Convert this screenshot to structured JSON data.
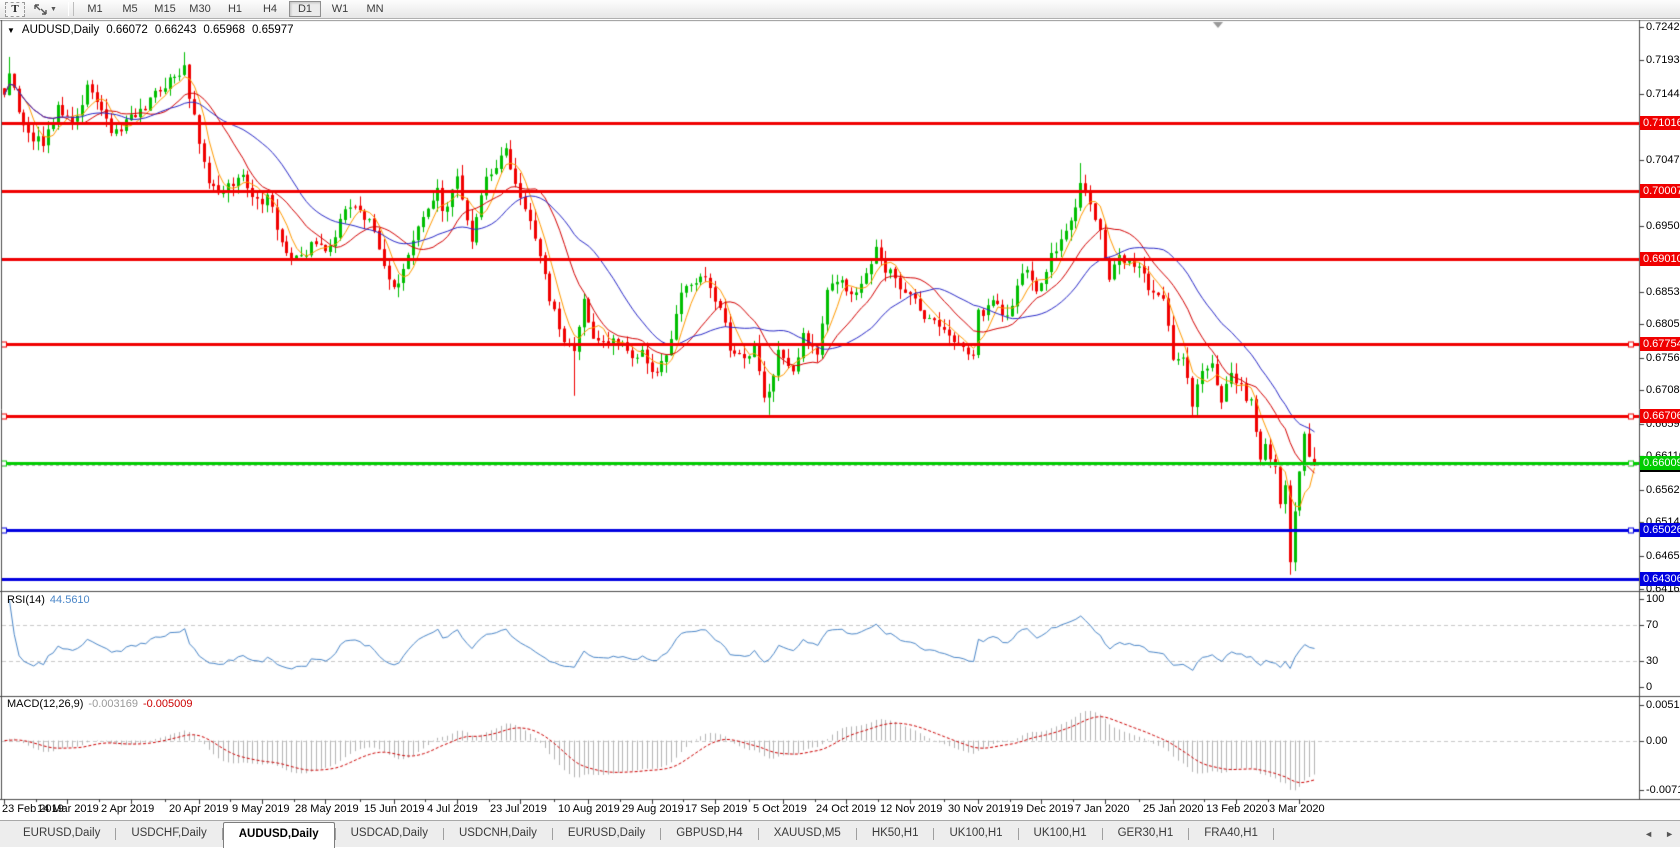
{
  "toolbar": {
    "text_tool_label": "T",
    "timeframes": [
      "M1",
      "M5",
      "M15",
      "M30",
      "H1",
      "H4",
      "D1",
      "W1",
      "MN"
    ],
    "active_timeframe": "D1"
  },
  "chart": {
    "collapse_icon": "▼",
    "title_symbol": "AUDUSD,Daily",
    "ohlc": {
      "open": "0.66072",
      "high": "0.66243",
      "low": "0.65968",
      "close": "0.65977"
    }
  },
  "chart_data": {
    "type": "candlestick",
    "symbol": "AUDUSD",
    "timeframe": "Daily",
    "date_range": [
      "2019-02-25",
      "2020-03-06"
    ],
    "colors": {
      "up": "#00be00",
      "down": "#f00000",
      "background": "#ffffff",
      "border": "#4a4a4a"
    },
    "last_bar": {
      "open": 0.66072,
      "high": 0.66243,
      "low": 0.65968,
      "close": 0.65977
    },
    "price_anchors": [
      [
        "2019-02-25",
        0.714
      ],
      [
        "2019-02-26",
        0.7175
      ],
      [
        "2019-03-01",
        0.7095
      ],
      [
        "2019-03-05",
        0.708
      ],
      [
        "2019-03-07",
        0.7068
      ],
      [
        "2019-03-12",
        0.712
      ],
      [
        "2019-03-15",
        0.7103
      ],
      [
        "2019-03-20",
        0.715
      ],
      [
        "2019-03-22",
        0.7133
      ],
      [
        "2019-03-27",
        0.7085
      ],
      [
        "2019-03-29",
        0.7096
      ],
      [
        "2019-04-03",
        0.7115
      ],
      [
        "2019-04-08",
        0.7132
      ],
      [
        "2019-04-12",
        0.7168
      ],
      [
        "2019-04-17",
        0.7182
      ],
      [
        "2019-04-18",
        0.7135
      ],
      [
        "2019-04-24",
        0.7018
      ],
      [
        "2019-04-26",
        0.6995
      ],
      [
        "2019-05-01",
        0.7015
      ],
      [
        "2019-05-03",
        0.7022
      ],
      [
        "2019-05-08",
        0.6985
      ],
      [
        "2019-05-10",
        0.6992
      ],
      [
        "2019-05-15",
        0.6928
      ],
      [
        "2019-05-17",
        0.6898
      ],
      [
        "2019-05-21",
        0.6905
      ],
      [
        "2019-05-24",
        0.6925
      ],
      [
        "2019-05-29",
        0.6915
      ],
      [
        "2019-06-03",
        0.6975
      ],
      [
        "2019-06-06",
        0.6968
      ],
      [
        "2019-06-10",
        0.6958
      ],
      [
        "2019-06-14",
        0.6872
      ],
      [
        "2019-06-18",
        0.6862
      ],
      [
        "2019-06-21",
        0.693
      ],
      [
        "2019-06-25",
        0.696
      ],
      [
        "2019-06-28",
        0.7
      ],
      [
        "2019-07-01",
        0.6965
      ],
      [
        "2019-07-04",
        0.7025
      ],
      [
        "2019-07-09",
        0.6932
      ],
      [
        "2019-07-12",
        0.7018
      ],
      [
        "2019-07-18",
        0.706
      ],
      [
        "2019-07-19",
        0.704
      ],
      [
        "2019-07-24",
        0.6975
      ],
      [
        "2019-07-29",
        0.69
      ],
      [
        "2019-07-31",
        0.6845
      ],
      [
        "2019-08-02",
        0.68
      ],
      [
        "2019-08-07",
        0.6758
      ],
      [
        "2019-08-09",
        0.6838
      ],
      [
        "2019-08-13",
        0.6782
      ],
      [
        "2019-08-16",
        0.6778
      ],
      [
        "2019-08-21",
        0.6782
      ],
      [
        "2019-08-23",
        0.6758
      ],
      [
        "2019-08-27",
        0.6762
      ],
      [
        "2019-08-30",
        0.6732
      ],
      [
        "2019-09-03",
        0.676
      ],
      [
        "2019-09-06",
        0.6845
      ],
      [
        "2019-09-11",
        0.6872
      ],
      [
        "2019-09-13",
        0.6878
      ],
      [
        "2019-09-18",
        0.683
      ],
      [
        "2019-09-20",
        0.6772
      ],
      [
        "2019-09-25",
        0.6752
      ],
      [
        "2019-09-27",
        0.6768
      ],
      [
        "2019-10-01",
        0.6702
      ],
      [
        "2019-10-02",
        0.6708
      ],
      [
        "2019-10-04",
        0.6768
      ],
      [
        "2019-10-09",
        0.6728
      ],
      [
        "2019-10-11",
        0.679
      ],
      [
        "2019-10-16",
        0.6762
      ],
      [
        "2019-10-18",
        0.6858
      ],
      [
        "2019-10-22",
        0.6872
      ],
      [
        "2019-10-25",
        0.6842
      ],
      [
        "2019-10-29",
        0.6858
      ],
      [
        "2019-10-31",
        0.689
      ],
      [
        "2019-11-01",
        0.6912
      ],
      [
        "2019-11-05",
        0.6888
      ],
      [
        "2019-11-08",
        0.6862
      ],
      [
        "2019-11-13",
        0.684
      ],
      [
        "2019-11-15",
        0.6815
      ],
      [
        "2019-11-20",
        0.68
      ],
      [
        "2019-11-22",
        0.6785
      ],
      [
        "2019-11-26",
        0.6775
      ],
      [
        "2019-11-29",
        0.6765
      ],
      [
        "2019-12-02",
        0.682
      ],
      [
        "2019-12-06",
        0.684
      ],
      [
        "2019-12-10",
        0.6812
      ],
      [
        "2019-12-12",
        0.6865
      ],
      [
        "2019-12-16",
        0.6885
      ],
      [
        "2019-12-18",
        0.6852
      ],
      [
        "2019-12-23",
        0.6905
      ],
      [
        "2019-12-27",
        0.695
      ],
      [
        "2019-12-31",
        0.7018
      ],
      [
        "2020-01-02",
        0.6985
      ],
      [
        "2020-01-06",
        0.6942
      ],
      [
        "2020-01-08",
        0.6872
      ],
      [
        "2020-01-10",
        0.69
      ],
      [
        "2020-01-14",
        0.6898
      ],
      [
        "2020-01-16",
        0.6888
      ],
      [
        "2020-01-21",
        0.6845
      ],
      [
        "2020-01-23",
        0.684
      ],
      [
        "2020-01-27",
        0.676
      ],
      [
        "2020-01-29",
        0.6755
      ],
      [
        "2020-01-31",
        0.6692
      ],
      [
        "2020-02-04",
        0.6735
      ],
      [
        "2020-02-06",
        0.6745
      ],
      [
        "2020-02-10",
        0.6695
      ],
      [
        "2020-02-12",
        0.6735
      ],
      [
        "2020-02-14",
        0.6712
      ],
      [
        "2020-02-18",
        0.6688
      ],
      [
        "2020-02-20",
        0.6612
      ],
      [
        "2020-02-21",
        0.6628
      ],
      [
        "2020-02-25",
        0.66
      ],
      [
        "2020-02-26",
        0.6548
      ],
      [
        "2020-02-27",
        0.657
      ],
      [
        "2020-02-28",
        0.646
      ],
      [
        "2020-03-02",
        0.653
      ],
      [
        "2020-03-03",
        0.6595
      ],
      [
        "2020-03-04",
        0.664
      ],
      [
        "2020-03-05",
        0.6612
      ],
      [
        "2020-03-06",
        0.6598
      ]
    ],
    "wick_overrides": [
      {
        "date": "2019-02-26",
        "high": 0.7198
      },
      {
        "date": "2019-04-17",
        "high": 0.7205
      },
      {
        "date": "2019-08-07",
        "low": 0.67
      },
      {
        "date": "2019-10-02",
        "low": 0.6672
      },
      {
        "date": "2019-12-31",
        "high": 0.7042
      },
      {
        "date": "2020-02-28",
        "low": 0.6437
      }
    ],
    "moving_averages": [
      {
        "name": "fast",
        "period": 5,
        "color": "#ff9a00"
      },
      {
        "name": "medium",
        "period": 13,
        "color": "#d40000"
      },
      {
        "name": "slow",
        "period": 24,
        "color": "#2828c8"
      }
    ],
    "horizontal_levels": [
      {
        "price": 0.71016,
        "label": "0.71016",
        "color": "#f00000",
        "handles": false
      },
      {
        "price": 0.70007,
        "label": "0.70007",
        "color": "#f00000",
        "handles": false
      },
      {
        "price": 0.6901,
        "label": "0.69010",
        "color": "#f00000",
        "handles": false
      },
      {
        "price": 0.67754,
        "label": "0.67754",
        "color": "#f00000",
        "handles": true
      },
      {
        "price": 0.66706,
        "label": "0.66706",
        "color": "#f00000",
        "handles": true
      },
      {
        "price": 0.66009,
        "label": "0.66009",
        "color": "#00cc00",
        "handles": true
      },
      {
        "price": 0.65026,
        "label": "0.65026",
        "color": "#0000e0",
        "handles": true
      },
      {
        "price": 0.64306,
        "label": "0.64306",
        "color": "#0000e0",
        "handles": false
      }
    ],
    "bid": {
      "price": 0.65977,
      "label": "0.65977",
      "line_color": "#b0b0b0",
      "label_bg": "#000000"
    },
    "y_ticks": [
      0.7242,
      0.7193,
      0.7144,
      0.7096,
      0.7047,
      0.695,
      0.6853,
      0.6805,
      0.6756,
      0.6708,
      0.6659,
      0.6611,
      0.6562,
      0.6514,
      0.6465,
      0.6416
    ],
    "x_labels": [
      "23 Feb 2019",
      "14 Mar 2019",
      "2 Apr 2019",
      "20 Apr 2019",
      "9 May 2019",
      "28 May 2019",
      "15 Jun 2019",
      "4 Jul 2019",
      "23 Jul 2019",
      "10 Aug 2019",
      "29 Aug 2019",
      "17 Sep 2019",
      "5 Oct 2019",
      "24 Oct 2019",
      "12 Nov 2019",
      "30 Nov 2019",
      "19 Dec 2019",
      "7 Jan 2020",
      "25 Jan 2020",
      "13 Feb 2020",
      "3 Mar 2020"
    ],
    "rsi": {
      "label": "RSI(14)",
      "value": "44.5610",
      "period": 14,
      "color": "#4a86c8",
      "levels": [
        70,
        30
      ],
      "scale": [
        0,
        100
      ],
      "ticks": [
        {
          "label": "100",
          "value": 100
        },
        {
          "label": "70",
          "value": 70
        },
        {
          "label": "30",
          "value": 30
        },
        {
          "label": "0",
          "value": 0
        }
      ]
    },
    "macd": {
      "label": "MACD(12,26,9)",
      "value_main": "-0.003169",
      "value_signal": "-0.005009",
      "params": [
        12,
        26,
        9
      ],
      "histogram_color": "#b4b4b4",
      "signal_color": "#cc0000",
      "ticks": [
        {
          "label": "0.005121",
          "value": 0.005121
        },
        {
          "label": "0.00",
          "value": 0
        },
        {
          "label": "-0.00711",
          "value": -0.00711
        }
      ]
    }
  },
  "tabs": {
    "items": [
      "EURUSD,Daily",
      "USDCHF,Daily",
      "AUDUSD,Daily",
      "USDCAD,Daily",
      "USDCNH,Daily",
      "EURUSD,Daily",
      "GBPUSD,H4",
      "XAUUSD,M5",
      "HK50,H1",
      "UK100,H1",
      "UK100,H1",
      "GER30,H1",
      "FRA40,H1"
    ],
    "active_index": 2,
    "scroll_left_icon": "◄",
    "scroll_right_icon": "►"
  }
}
